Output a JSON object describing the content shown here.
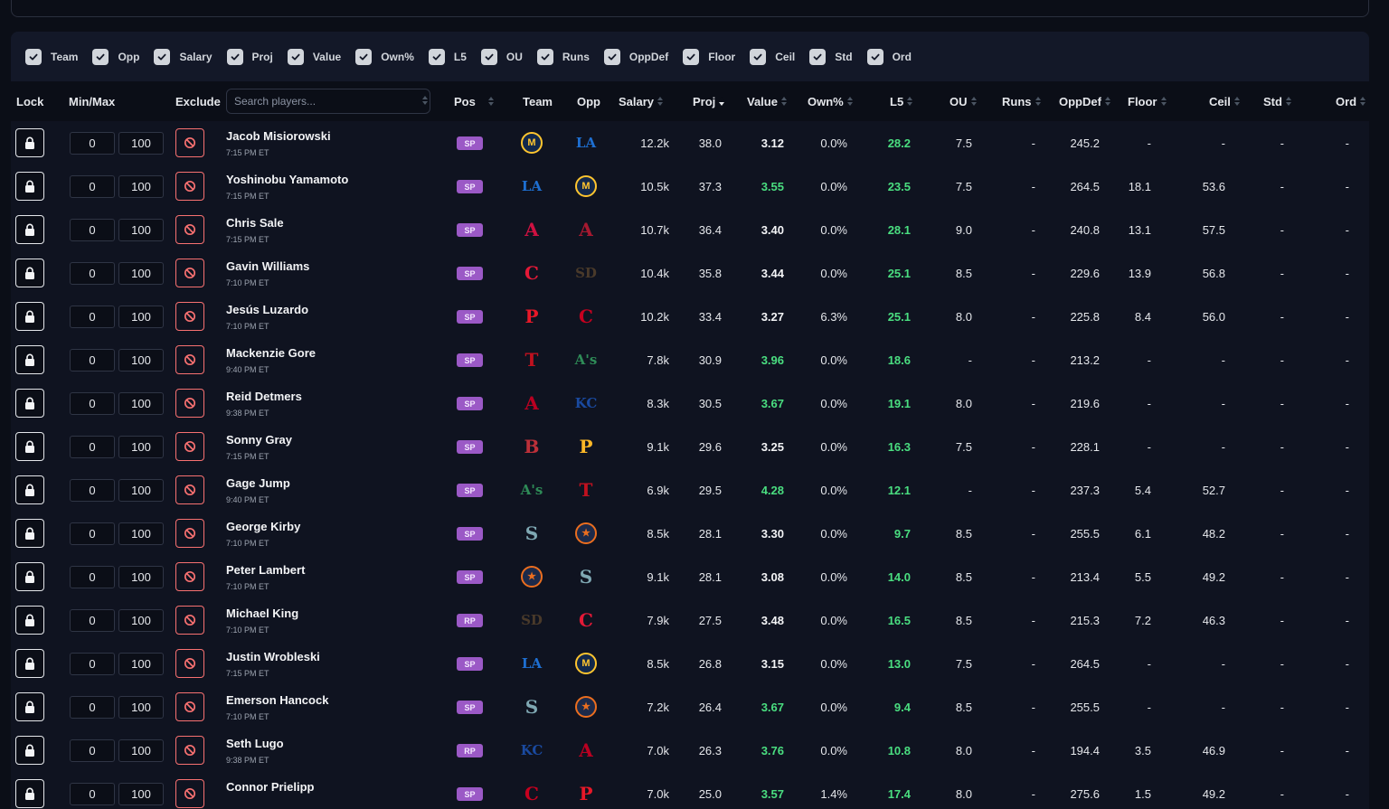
{
  "columns_toggle": [
    "Team",
    "Opp",
    "Salary",
    "Proj",
    "Value",
    "Own%",
    "L5",
    "OU",
    "Runs",
    "OppDef",
    "Floor",
    "Ceil",
    "Std",
    "Ord"
  ],
  "headers": {
    "lock": "Lock",
    "minmax": "Min/Max",
    "exclude": "Exclude",
    "pos": "Pos",
    "team": "Team",
    "opp": "Opp",
    "salary": "Salary",
    "proj": "Proj",
    "value": "Value",
    "own": "Own%",
    "l5": "L5",
    "ou": "OU",
    "runs": "Runs",
    "oppdef": "OppDef",
    "floor": "Floor",
    "ceil": "Ceil",
    "std": "Std",
    "ord": "Ord"
  },
  "search": {
    "placeholder": "Search players..."
  },
  "sort": {
    "column": "proj",
    "direction": "desc"
  },
  "colors": {
    "pos_badge": "#9b59c6",
    "green": "#4ade80",
    "exclude": "#f87171"
  },
  "teams": {
    "MIL": {
      "glyph": "M",
      "fg": "#ffc52f",
      "bg": "#12284b",
      "shape": "circle"
    },
    "LAD": {
      "glyph": "LA",
      "fg": "#1e6fd1",
      "bg": "",
      "shape": "letter"
    },
    "ATL": {
      "glyph": "A",
      "fg": "#ce1141",
      "bg": "",
      "shape": "letter"
    },
    "ARI": {
      "glyph": "A",
      "fg": "#a71930",
      "bg": "",
      "shape": "letter"
    },
    "CLE": {
      "glyph": "C",
      "fg": "#e31937",
      "bg": "",
      "shape": "letter"
    },
    "SD": {
      "glyph": "SD",
      "fg": "#4a3a2a",
      "bg": "",
      "shape": "letter"
    },
    "PHI": {
      "glyph": "P",
      "fg": "#e81828",
      "bg": "",
      "shape": "letter"
    },
    "CIN": {
      "glyph": "C",
      "fg": "#c6011f",
      "bg": "",
      "shape": "letter"
    },
    "TEX": {
      "glyph": "T",
      "fg": "#c0111f",
      "bg": "",
      "shape": "letter"
    },
    "ATH": {
      "glyph": "A's",
      "fg": "#2e8b57",
      "bg": "",
      "shape": "letter"
    },
    "LAA": {
      "glyph": "A",
      "fg": "#ba0021",
      "bg": "",
      "shape": "letter"
    },
    "KC": {
      "glyph": "KC",
      "fg": "#1a4aa0",
      "bg": "",
      "shape": "letter"
    },
    "BOS": {
      "glyph": "B",
      "fg": "#bd3039",
      "bg": "",
      "shape": "letter"
    },
    "PIT": {
      "glyph": "P",
      "fg": "#fdb827",
      "bg": "",
      "shape": "letter"
    },
    "SEA": {
      "glyph": "S",
      "fg": "#7fa8b3",
      "bg": "",
      "shape": "letter"
    },
    "HOU": {
      "glyph": "★",
      "fg": "#eb6e1f",
      "bg": "#1c2a4a",
      "shape": "circle"
    }
  },
  "players": [
    {
      "name": "Jacob Misiorowski",
      "time": "7:15 PM ET",
      "min": "0",
      "max": "100",
      "pos": "SP",
      "team": "MIL",
      "opp": "LAD",
      "salary": "12.2k",
      "proj": "38.0",
      "value": "3.12",
      "value_hi": false,
      "own": "0.0%",
      "l5": "28.2",
      "ou": "7.5",
      "runs": "-",
      "oppdef": "245.2",
      "floor": "-",
      "ceil": "-",
      "std": "-",
      "ord": "-"
    },
    {
      "name": "Yoshinobu Yamamoto",
      "time": "7:15 PM ET",
      "min": "0",
      "max": "100",
      "pos": "SP",
      "team": "LAD",
      "opp": "MIL",
      "salary": "10.5k",
      "proj": "37.3",
      "value": "3.55",
      "value_hi": true,
      "own": "0.0%",
      "l5": "23.5",
      "ou": "7.5",
      "runs": "-",
      "oppdef": "264.5",
      "floor": "18.1",
      "ceil": "53.6",
      "std": "-",
      "ord": "-"
    },
    {
      "name": "Chris Sale",
      "time": "7:15 PM ET",
      "min": "0",
      "max": "100",
      "pos": "SP",
      "team": "ATL",
      "opp": "ARI",
      "salary": "10.7k",
      "proj": "36.4",
      "value": "3.40",
      "value_hi": false,
      "own": "0.0%",
      "l5": "28.1",
      "ou": "9.0",
      "runs": "-",
      "oppdef": "240.8",
      "floor": "13.1",
      "ceil": "57.5",
      "std": "-",
      "ord": "-"
    },
    {
      "name": "Gavin Williams",
      "time": "7:10 PM ET",
      "min": "0",
      "max": "100",
      "pos": "SP",
      "team": "CLE",
      "opp": "SD",
      "salary": "10.4k",
      "proj": "35.8",
      "value": "3.44",
      "value_hi": false,
      "own": "0.0%",
      "l5": "25.1",
      "ou": "8.5",
      "runs": "-",
      "oppdef": "229.6",
      "floor": "13.9",
      "ceil": "56.8",
      "std": "-",
      "ord": "-"
    },
    {
      "name": "Jesús Luzardo",
      "time": "7:10 PM ET",
      "min": "0",
      "max": "100",
      "pos": "SP",
      "team": "PHI",
      "opp": "CIN",
      "salary": "10.2k",
      "proj": "33.4",
      "value": "3.27",
      "value_hi": false,
      "own": "6.3%",
      "l5": "25.1",
      "ou": "8.0",
      "runs": "-",
      "oppdef": "225.8",
      "floor": "8.4",
      "ceil": "56.0",
      "std": "-",
      "ord": "-"
    },
    {
      "name": "Mackenzie Gore",
      "time": "9:40 PM ET",
      "min": "0",
      "max": "100",
      "pos": "SP",
      "team": "TEX",
      "opp": "ATH",
      "salary": "7.8k",
      "proj": "30.9",
      "value": "3.96",
      "value_hi": true,
      "own": "0.0%",
      "l5": "18.6",
      "ou": "-",
      "runs": "-",
      "oppdef": "213.2",
      "floor": "-",
      "ceil": "-",
      "std": "-",
      "ord": "-"
    },
    {
      "name": "Reid Detmers",
      "time": "9:38 PM ET",
      "min": "0",
      "max": "100",
      "pos": "SP",
      "team": "LAA",
      "opp": "KC",
      "salary": "8.3k",
      "proj": "30.5",
      "value": "3.67",
      "value_hi": true,
      "own": "0.0%",
      "l5": "19.1",
      "ou": "8.0",
      "runs": "-",
      "oppdef": "219.6",
      "floor": "-",
      "ceil": "-",
      "std": "-",
      "ord": "-"
    },
    {
      "name": "Sonny Gray",
      "time": "7:15 PM ET",
      "min": "0",
      "max": "100",
      "pos": "SP",
      "team": "BOS",
      "opp": "PIT",
      "salary": "9.1k",
      "proj": "29.6",
      "value": "3.25",
      "value_hi": false,
      "own": "0.0%",
      "l5": "16.3",
      "ou": "7.5",
      "runs": "-",
      "oppdef": "228.1",
      "floor": "-",
      "ceil": "-",
      "std": "-",
      "ord": "-"
    },
    {
      "name": "Gage Jump",
      "time": "9:40 PM ET",
      "min": "0",
      "max": "100",
      "pos": "SP",
      "team": "ATH",
      "opp": "TEX",
      "salary": "6.9k",
      "proj": "29.5",
      "value": "4.28",
      "value_hi": true,
      "own": "0.0%",
      "l5": "12.1",
      "ou": "-",
      "runs": "-",
      "oppdef": "237.3",
      "floor": "5.4",
      "ceil": "52.7",
      "std": "-",
      "ord": "-"
    },
    {
      "name": "George Kirby",
      "time": "7:10 PM ET",
      "min": "0",
      "max": "100",
      "pos": "SP",
      "team": "SEA",
      "opp": "HOU",
      "salary": "8.5k",
      "proj": "28.1",
      "value": "3.30",
      "value_hi": false,
      "own": "0.0%",
      "l5": "9.7",
      "ou": "8.5",
      "runs": "-",
      "oppdef": "255.5",
      "floor": "6.1",
      "ceil": "48.2",
      "std": "-",
      "ord": "-"
    },
    {
      "name": "Peter Lambert",
      "time": "7:10 PM ET",
      "min": "0",
      "max": "100",
      "pos": "SP",
      "team": "HOU",
      "opp": "SEA",
      "salary": "9.1k",
      "proj": "28.1",
      "value": "3.08",
      "value_hi": false,
      "own": "0.0%",
      "l5": "14.0",
      "ou": "8.5",
      "runs": "-",
      "oppdef": "213.4",
      "floor": "5.5",
      "ceil": "49.2",
      "std": "-",
      "ord": "-"
    },
    {
      "name": "Michael King",
      "time": "7:10 PM ET",
      "min": "0",
      "max": "100",
      "pos": "RP",
      "team": "SD",
      "opp": "CLE",
      "salary": "7.9k",
      "proj": "27.5",
      "value": "3.48",
      "value_hi": false,
      "own": "0.0%",
      "l5": "16.5",
      "ou": "8.5",
      "runs": "-",
      "oppdef": "215.3",
      "floor": "7.2",
      "ceil": "46.3",
      "std": "-",
      "ord": "-"
    },
    {
      "name": "Justin Wrobleski",
      "time": "7:15 PM ET",
      "min": "0",
      "max": "100",
      "pos": "SP",
      "team": "LAD",
      "opp": "MIL",
      "salary": "8.5k",
      "proj": "26.8",
      "value": "3.15",
      "value_hi": false,
      "own": "0.0%",
      "l5": "13.0",
      "ou": "7.5",
      "runs": "-",
      "oppdef": "264.5",
      "floor": "-",
      "ceil": "-",
      "std": "-",
      "ord": "-"
    },
    {
      "name": "Emerson Hancock",
      "time": "7:10 PM ET",
      "min": "0",
      "max": "100",
      "pos": "SP",
      "team": "SEA",
      "opp": "HOU",
      "salary": "7.2k",
      "proj": "26.4",
      "value": "3.67",
      "value_hi": true,
      "own": "0.0%",
      "l5": "9.4",
      "ou": "8.5",
      "runs": "-",
      "oppdef": "255.5",
      "floor": "-",
      "ceil": "-",
      "std": "-",
      "ord": "-"
    },
    {
      "name": "Seth Lugo",
      "time": "9:38 PM ET",
      "min": "0",
      "max": "100",
      "pos": "RP",
      "team": "KC",
      "opp": "LAA",
      "salary": "7.0k",
      "proj": "26.3",
      "value": "3.76",
      "value_hi": true,
      "own": "0.0%",
      "l5": "10.8",
      "ou": "8.0",
      "runs": "-",
      "oppdef": "194.4",
      "floor": "3.5",
      "ceil": "46.9",
      "std": "-",
      "ord": "-"
    },
    {
      "name": "Connor Prielipp",
      "time": "",
      "min": "0",
      "max": "100",
      "pos": "SP",
      "team": "CIN",
      "opp": "PHI",
      "salary": "7.0k",
      "proj": "25.0",
      "value": "3.57",
      "value_hi": true,
      "own": "1.4%",
      "l5": "17.4",
      "ou": "8.0",
      "runs": "-",
      "oppdef": "275.6",
      "floor": "1.5",
      "ceil": "49.2",
      "std": "-",
      "ord": "-"
    }
  ]
}
